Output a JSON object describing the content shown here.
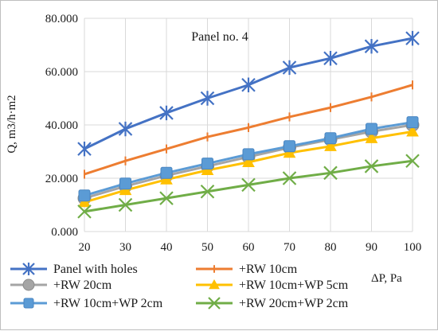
{
  "chart_data": {
    "type": "line",
    "annotation": "Panel no. 4",
    "ylabel": "Q, m3/h·m2",
    "xlabel": "ΔP, Pa",
    "x": [
      20,
      30,
      40,
      50,
      60,
      70,
      80,
      90,
      100
    ],
    "ylim": [
      0,
      80
    ],
    "yticks": [
      0,
      20,
      40,
      60,
      80
    ],
    "ytick_labels": [
      "0.000",
      "20.000",
      "40.000",
      "60.000",
      "80.000"
    ],
    "grid": true,
    "legend_position": "bottom",
    "series": [
      {
        "name": "Panel with holes",
        "color": "#4472c4",
        "marker": "star",
        "values": [
          31.0,
          38.5,
          44.5,
          50.0,
          55.0,
          61.5,
          65.0,
          69.5,
          72.5
        ]
      },
      {
        "name": "+RW 10cm",
        "color": "#ed7d31",
        "marker": "plus",
        "values": [
          21.5,
          26.5,
          31.0,
          35.5,
          39.0,
          43.0,
          46.5,
          50.5,
          55.0
        ]
      },
      {
        "name": "+RW 20cm",
        "color": "#a5a5a5",
        "marker": "circle",
        "values": [
          12.5,
          17.0,
          21.0,
          24.5,
          28.0,
          31.5,
          34.5,
          37.5,
          40.0
        ]
      },
      {
        "name": "+RW 10cm+WP 5cm",
        "color": "#ffc000",
        "marker": "triangle",
        "values": [
          11.0,
          15.5,
          19.5,
          23.0,
          26.0,
          29.5,
          32.0,
          35.0,
          37.5
        ]
      },
      {
        "name": "+RW 10cm+WP 2cm",
        "color": "#5b9bd5",
        "marker": "square",
        "values": [
          13.5,
          18.0,
          22.0,
          25.5,
          29.0,
          32.0,
          35.0,
          38.5,
          41.0
        ]
      },
      {
        "name": "+RW 20cm+WP 2cm",
        "color": "#70ad47",
        "marker": "x",
        "values": [
          7.5,
          10.0,
          12.5,
          15.0,
          17.5,
          20.0,
          22.0,
          24.5,
          26.5
        ]
      }
    ]
  }
}
